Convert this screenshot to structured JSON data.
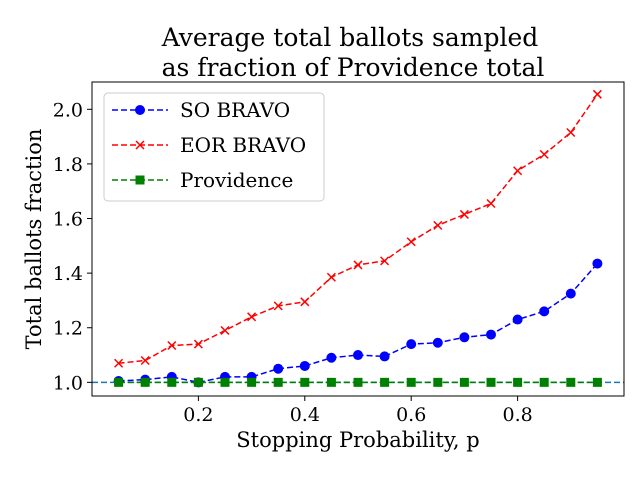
{
  "chart_data": {
    "type": "line",
    "title_line1": "Average total ballots sampled",
    "title_line2": "as fraction of Providence total",
    "xlabel": "Stopping Probability, p",
    "ylabel": "Total ballots fraction",
    "xlim": [
      0.0,
      1.0
    ],
    "ylim": [
      0.95,
      2.1
    ],
    "xticks": [
      0.2,
      0.4,
      0.6,
      0.8
    ],
    "xtick_labels": [
      "0.2",
      "0.4",
      "0.6",
      "0.8"
    ],
    "yticks": [
      1.0,
      1.2,
      1.4,
      1.6,
      1.8,
      2.0
    ],
    "ytick_labels": [
      "1.0",
      "1.2",
      "1.4",
      "1.6",
      "1.8",
      "2.0"
    ],
    "grid": false,
    "legend_position": "upper-left",
    "x": [
      0.05,
      0.1,
      0.15,
      0.2,
      0.25,
      0.3,
      0.35,
      0.4,
      0.45,
      0.5,
      0.55,
      0.6,
      0.65,
      0.7,
      0.75,
      0.8,
      0.85,
      0.9,
      0.95
    ],
    "series": [
      {
        "name": "SO BRAVO",
        "color": "#0000ff",
        "marker": "circle",
        "values": [
          1.005,
          1.01,
          1.02,
          1.0,
          1.02,
          1.02,
          1.05,
          1.06,
          1.09,
          1.1,
          1.095,
          1.14,
          1.145,
          1.165,
          1.175,
          1.23,
          1.26,
          1.325,
          1.435
        ]
      },
      {
        "name": "EOR BRAVO",
        "color": "#ff0000",
        "marker": "x",
        "values": [
          1.07,
          1.08,
          1.135,
          1.14,
          1.19,
          1.24,
          1.28,
          1.295,
          1.385,
          1.43,
          1.445,
          1.515,
          1.575,
          1.615,
          1.655,
          1.775,
          1.835,
          1.915,
          2.055
        ]
      },
      {
        "name": "Providence",
        "color": "#008000",
        "marker": "square",
        "values": [
          1.0,
          1.0,
          1.0,
          1.0,
          1.0,
          1.0,
          1.0,
          1.0,
          1.0,
          1.0,
          1.0,
          1.0,
          1.0,
          1.0,
          1.0,
          1.0,
          1.0,
          1.0,
          1.0
        ]
      }
    ],
    "reference_line": {
      "y": 1.0,
      "color": "#1f77b4",
      "style": "dashed"
    }
  }
}
